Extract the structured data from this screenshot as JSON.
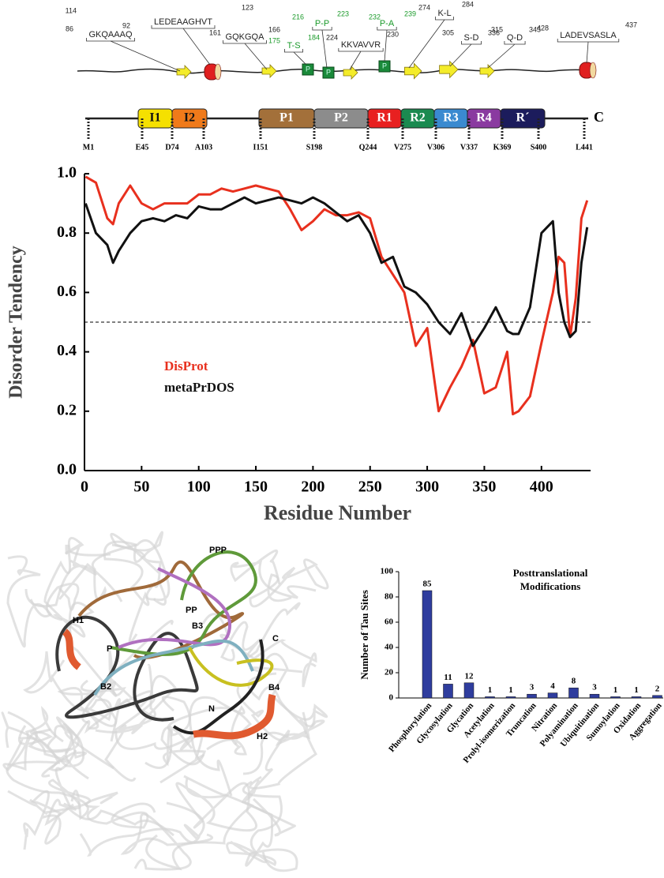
{
  "diagram": {
    "motifs": [
      {
        "start": "86",
        "seq": "GKQAAAQ",
        "end": "92"
      },
      {
        "start": "114",
        "seq": "LEDEAAGHVT",
        "end": "123"
      },
      {
        "start": "161",
        "seq": "GQKGQA",
        "end": "166"
      },
      {
        "start": "175",
        "seq": "T-S",
        "end": "184"
      },
      {
        "start": "216",
        "seq": "P-P",
        "end": "223"
      },
      {
        "start": "224",
        "seq": "KKVAVVR",
        "end": "230"
      },
      {
        "start": "232",
        "seq": "P-A",
        "end": "239"
      },
      {
        "start": "274",
        "seq": "K-L",
        "end": "284"
      },
      {
        "start": "305",
        "seq": "S-D",
        "end": "315"
      },
      {
        "start": "336",
        "seq": "Q-D",
        "end": "345"
      },
      {
        "start": "428",
        "seq": "LADEVSASLA",
        "end": "437"
      }
    ],
    "phospho": [
      "P",
      "P",
      "P"
    ],
    "domains": [
      "I1",
      "I2",
      "P1",
      "P2",
      "R1",
      "R2",
      "R3",
      "R4",
      "R´"
    ],
    "end_label": "C",
    "residues": [
      "M1",
      "E45",
      "D74",
      "A103",
      "I151",
      "S198",
      "Q244",
      "V275",
      "V306",
      "V337",
      "K369",
      "S400",
      "L441"
    ]
  },
  "structure": {
    "labels": [
      "PPP",
      "PP",
      "H1",
      "P",
      "B3",
      "C",
      "B2",
      "B4",
      "N",
      "H2"
    ]
  },
  "chart_data": [
    {
      "type": "line",
      "x_label": "Residue Number",
      "y_label": "Disorder Tendency",
      "x": [
        1,
        10,
        20,
        25,
        30,
        40,
        50,
        60,
        70,
        80,
        90,
        100,
        110,
        120,
        130,
        140,
        150,
        160,
        170,
        180,
        190,
        200,
        210,
        220,
        230,
        240,
        250,
        260,
        270,
        280,
        290,
        300,
        310,
        320,
        330,
        340,
        350,
        360,
        370,
        375,
        380,
        390,
        400,
        410,
        415,
        420,
        425,
        430,
        435,
        440
      ],
      "series": [
        {
          "name": "DisProt",
          "color": "#e8301e",
          "values": [
            0.99,
            0.97,
            0.85,
            0.83,
            0.9,
            0.96,
            0.9,
            0.88,
            0.9,
            0.9,
            0.9,
            0.93,
            0.93,
            0.95,
            0.94,
            0.95,
            0.96,
            0.95,
            0.94,
            0.88,
            0.81,
            0.84,
            0.88,
            0.86,
            0.86,
            0.87,
            0.85,
            0.72,
            0.66,
            0.6,
            0.42,
            0.48,
            0.2,
            0.28,
            0.35,
            0.44,
            0.26,
            0.28,
            0.4,
            0.19,
            0.2,
            0.25,
            0.43,
            0.6,
            0.72,
            0.7,
            0.45,
            0.58,
            0.85,
            0.91
          ]
        },
        {
          "name": "metaPrDOS",
          "color": "#111111",
          "values": [
            0.9,
            0.8,
            0.76,
            0.7,
            0.74,
            0.8,
            0.84,
            0.85,
            0.84,
            0.86,
            0.85,
            0.89,
            0.88,
            0.88,
            0.9,
            0.92,
            0.9,
            0.91,
            0.92,
            0.91,
            0.9,
            0.92,
            0.9,
            0.87,
            0.84,
            0.86,
            0.8,
            0.7,
            0.72,
            0.62,
            0.6,
            0.56,
            0.5,
            0.46,
            0.53,
            0.42,
            0.48,
            0.55,
            0.47,
            0.46,
            0.46,
            0.55,
            0.8,
            0.84,
            0.6,
            0.5,
            0.45,
            0.47,
            0.7,
            0.82
          ]
        }
      ],
      "threshold": 0.5,
      "xlim": [
        0,
        443
      ],
      "xticks": [
        0,
        50,
        100,
        150,
        200,
        250,
        300,
        350,
        400
      ],
      "ylim": [
        0,
        1
      ],
      "yticks": [
        {
          "value": 0,
          "label": "0.0"
        },
        0.2,
        0.4,
        0.6,
        0.8,
        {
          "value": 1,
          "label": "1.0"
        }
      ]
    },
    {
      "type": "bar",
      "title": [
        "Posttranslational",
        "Modifications"
      ],
      "y_label": "Number of Tau Sites",
      "categories": [
        "Phosphorylation",
        "Glycosylation",
        "Glycation",
        "Acetylation",
        "Prolyl-isomerization",
        "Truncation",
        "Nitration",
        "Polyamination",
        "Ubiquitination",
        "Sumoylation",
        "Oxidation",
        "Aggregation"
      ],
      "values": [
        85,
        11,
        12,
        1,
        1,
        3,
        4,
        8,
        3,
        1,
        1,
        2
      ],
      "color": "#2f3d9e",
      "ylim": [
        0,
        100
      ],
      "yticks": [
        0,
        20,
        40,
        60,
        80,
        100
      ]
    }
  ]
}
